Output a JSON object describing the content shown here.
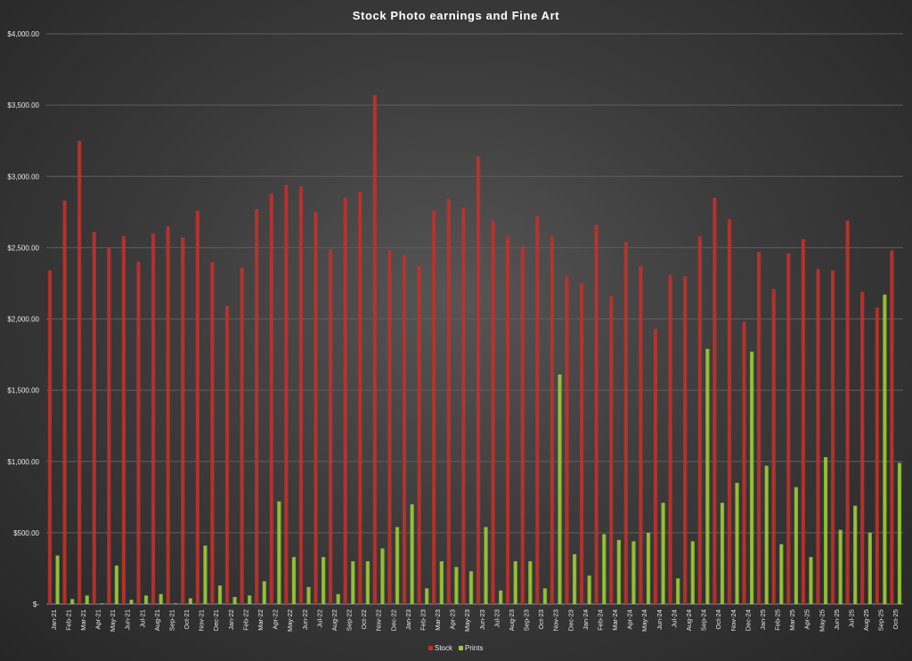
{
  "chart_data": {
    "type": "bar",
    "title": "Stock  Photo  earnings  and  Fine  Art",
    "categories": [
      "Jan-21",
      "Feb-21",
      "Mar-21",
      "Apr-21",
      "May-21",
      "Jun-21",
      "Jul-21",
      "Aug-21",
      "Sep-21",
      "Oct-21",
      "Nov-21",
      "Dec-21",
      "Jan-22",
      "Feb-22",
      "Mar-22",
      "Apr-22",
      "May-22",
      "Jun-22",
      "Jul-22",
      "Aug-22",
      "Sep-22",
      "Oct-22",
      "Nov-22",
      "Dec-22",
      "Jan-23",
      "Feb-23",
      "Mar-23",
      "Apr-23",
      "May-23",
      "Jun-23",
      "Jul-23",
      "Aug-23",
      "Sep-23",
      "Oct-23",
      "Nov-23",
      "Dec-23",
      "Jan-24",
      "Feb-24",
      "Mar-24",
      "Apr-24",
      "May-24",
      "Jun-24",
      "Jul-24",
      "Aug-24",
      "Sep-24",
      "Oct-24",
      "Nov-24",
      "Dec-24",
      "Jan-25",
      "Feb-25",
      "Mar-25",
      "Apr-25",
      "May-25",
      "Jun-25",
      "Jul-25",
      "Aug-25",
      "Sep-25",
      "Oct-25"
    ],
    "series": [
      {
        "name": "Stock",
        "color": "#c0302a",
        "values": [
          2340,
          2830,
          3250,
          2610,
          2500,
          2580,
          2400,
          2600,
          2650,
          2570,
          2760,
          2400,
          2090,
          2360,
          2770,
          2880,
          2940,
          2930,
          2750,
          2490,
          2850,
          2890,
          3570,
          2480,
          2450,
          2370,
          2760,
          2840,
          2780,
          3140,
          2690,
          2580,
          2510,
          2720,
          2580,
          2300,
          2250,
          2660,
          2160,
          2540,
          2370,
          1930,
          2310,
          2300,
          2580,
          2850,
          2700,
          1980,
          2470,
          2210,
          2460,
          2560,
          2350,
          2340,
          2690,
          2190,
          2080,
          2480
        ]
      },
      {
        "name": "Prints",
        "color": "#9acd32",
        "values": [
          340,
          35,
          60,
          5,
          270,
          30,
          60,
          70,
          5,
          40,
          410,
          130,
          50,
          60,
          160,
          720,
          330,
          120,
          330,
          70,
          300,
          300,
          390,
          540,
          700,
          110,
          300,
          260,
          230,
          540,
          95,
          300,
          300,
          110,
          1610,
          350,
          200,
          490,
          450,
          440,
          500,
          710,
          180,
          440,
          1790,
          710,
          850,
          1770,
          970,
          420,
          820,
          330,
          1030,
          520,
          690,
          500,
          2170,
          990
        ]
      }
    ],
    "ylim": [
      0,
      4000
    ],
    "yticks": [
      0,
      500,
      1000,
      1500,
      2000,
      2500,
      3000,
      3500,
      4000
    ],
    "ytick_labels": [
      "$-",
      "$500.00",
      "$1,000.00",
      "$1,500.00",
      "$2,000.00",
      "$2,500.00",
      "$3,000.00",
      "$3,500.00",
      "$4,000.00"
    ],
    "xlabel": "",
    "ylabel": "",
    "grid": true,
    "legend_position": "bottom"
  }
}
